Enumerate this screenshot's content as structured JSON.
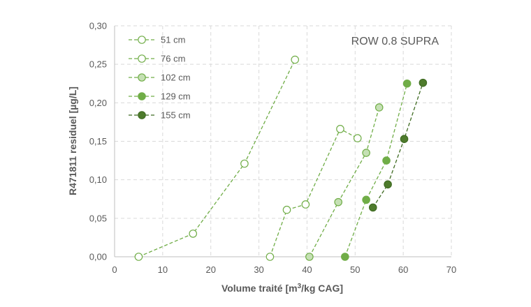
{
  "chart_data": {
    "type": "scatter",
    "annotation": "ROW 0.8 SUPRA",
    "xlabel": "Volume traité [m³/kg CAG]",
    "xlabel_main": "Volume traité [m",
    "xlabel_sup": "3",
    "xlabel_end": "/kg CAG]",
    "ylabel": "R471811 residuel [µg/L]",
    "xlim": [
      0,
      70
    ],
    "ylim": [
      0,
      0.3
    ],
    "xticks": [
      "0",
      "10",
      "20",
      "30",
      "40",
      "50",
      "60",
      "70"
    ],
    "yticks": [
      "0,00",
      "0,05",
      "0,10",
      "0,15",
      "0,20",
      "0,25",
      "0,30"
    ],
    "grid": true,
    "legend_position": "top-left",
    "series": [
      {
        "name": "51 cm",
        "color": "#70AD47",
        "fill": "#ffffff",
        "points": [
          [
            5,
            0.0
          ],
          [
            16.3,
            0.03
          ],
          [
            27,
            0.121
          ],
          [
            37.5,
            0.256
          ]
        ]
      },
      {
        "name": "76 cm",
        "color": "#70AD47",
        "fill": "#ffffff",
        "points": [
          [
            32.3,
            0.0
          ],
          [
            35.8,
            0.061
          ],
          [
            39.7,
            0.068
          ],
          [
            46.9,
            0.166
          ],
          [
            50.5,
            0.154
          ]
        ]
      },
      {
        "name": "102 cm",
        "color": "#70AD47",
        "fill": "#C5E0B4",
        "points": [
          [
            40.5,
            0.0
          ],
          [
            46.5,
            0.071
          ],
          [
            52.3,
            0.135
          ],
          [
            55,
            0.194
          ]
        ]
      },
      {
        "name": "129 cm",
        "color": "#70AD47",
        "fill": "#70AD47",
        "points": [
          [
            47.9,
            0.0
          ],
          [
            52.3,
            0.074
          ],
          [
            56.5,
            0.125
          ],
          [
            60.8,
            0.225
          ]
        ]
      },
      {
        "name": "155 cm",
        "color": "#3F6B22",
        "fill": "#4E7B2C",
        "points": [
          [
            53.7,
            0.064
          ],
          [
            56.8,
            0.094
          ],
          [
            60.2,
            0.153
          ],
          [
            64.1,
            0.226
          ]
        ]
      }
    ]
  }
}
